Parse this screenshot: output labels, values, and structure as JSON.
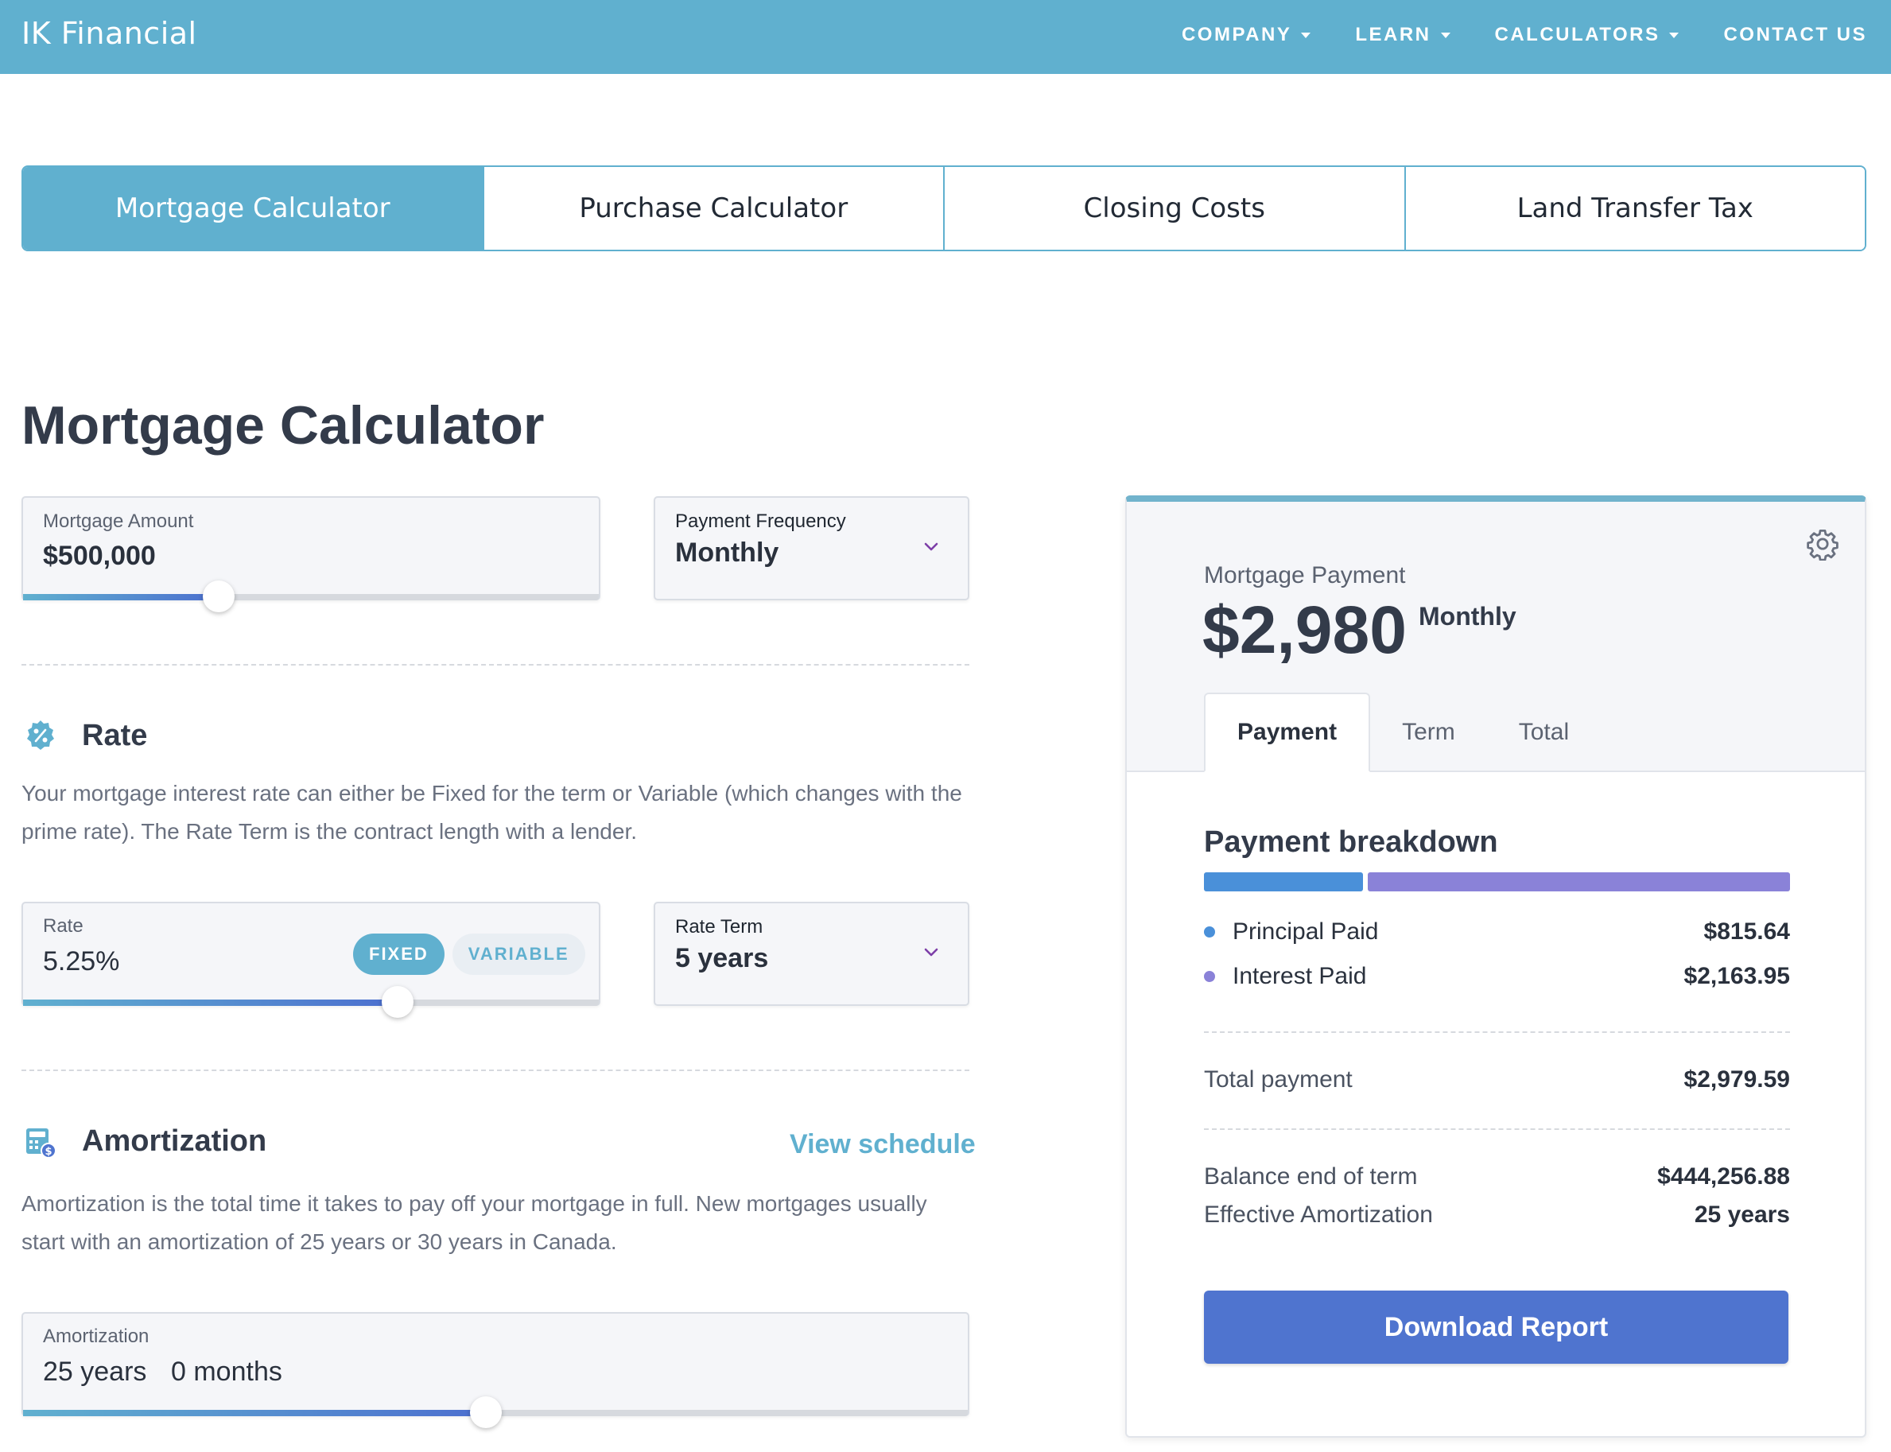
{
  "brand": "IK Financial",
  "nav": [
    {
      "label": "COMPANY",
      "caret": true
    },
    {
      "label": "LEARN",
      "caret": true
    },
    {
      "label": "CALCULATORS",
      "caret": true
    },
    {
      "label": "CONTACT US",
      "caret": false
    }
  ],
  "calc_tabs": [
    "Mortgage Calculator",
    "Purchase Calculator",
    "Closing Costs",
    "Land Transfer Tax"
  ],
  "page_title": "Mortgage Calculator",
  "mortgage_amount": {
    "label": "Mortgage Amount",
    "value": "$500,000",
    "slider_fraction": 0.34
  },
  "payment_frequency": {
    "label": "Payment Frequency",
    "value": "Monthly"
  },
  "rate_section": {
    "title": "Rate",
    "description": "Your mortgage interest rate can either be Fixed for the term or Variable (which changes with the prime rate). The Rate Term is the contract length with a lender.",
    "rate": {
      "label": "Rate",
      "value": "5.25%",
      "slider_fraction": 0.65
    },
    "toggle": {
      "fixed": "FIXED",
      "variable": "VARIABLE",
      "selected": "FIXED"
    },
    "rate_term": {
      "label": "Rate Term",
      "value": "5 years"
    }
  },
  "amortization_section": {
    "title": "Amortization",
    "view_link": "View schedule",
    "description": "Amortization is the total time it takes to pay off your mortgage in full. New mortgages usually start with an amortization of 25 years or 30 years in Canada.",
    "field": {
      "label": "Amortization",
      "years": "25 years",
      "months": "0 months",
      "slider_fraction": 0.49
    }
  },
  "results": {
    "label": "Mortgage Payment",
    "amount": "$2,980",
    "period": "Monthly",
    "tabs": [
      "Payment",
      "Term",
      "Total"
    ],
    "active_tab": "Payment",
    "breakdown_title": "Payment breakdown",
    "principal": {
      "label": "Principal Paid",
      "value": "$815.64",
      "color": "#4a90d9"
    },
    "interest": {
      "label": "Interest Paid",
      "value": "$2,163.95",
      "color": "#8a82d8"
    },
    "total": {
      "label": "Total payment",
      "value": "$2,979.59"
    },
    "balance": {
      "label": "Balance end of term",
      "value": "$444,256.88"
    },
    "effective": {
      "label": "Effective Amortization",
      "value": "25 years"
    },
    "download": "Download Report"
  },
  "colors": {
    "accent": "#60b0cf",
    "button": "#4f74cf"
  }
}
